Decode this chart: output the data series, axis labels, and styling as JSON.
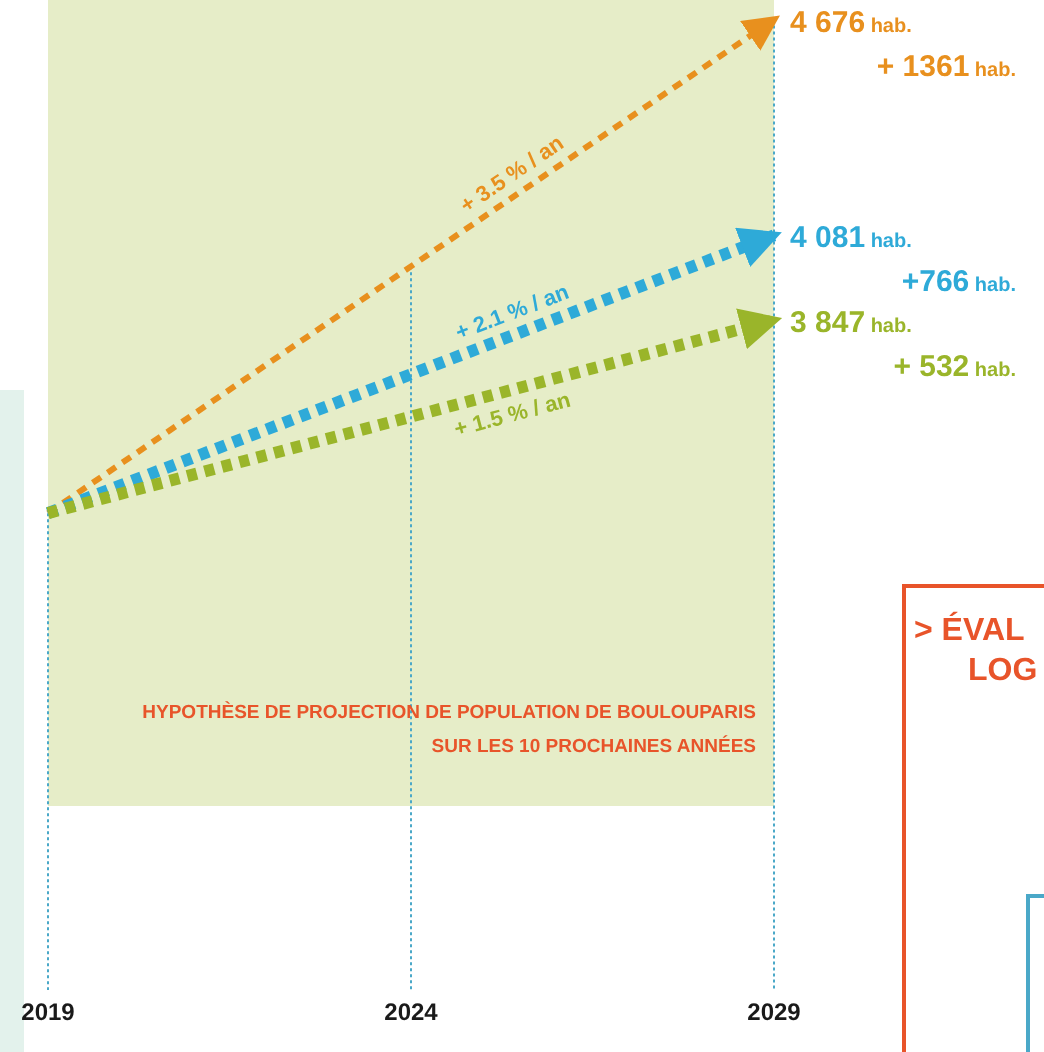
{
  "chart_data": {
    "type": "line",
    "title": "HYPOTHÈSE DE PROJECTION DE POPULATION DE BOULOUPARIS",
    "subtitle": "SUR LES 10 PROCHAINES ANNÉES",
    "x": [
      2019,
      2029
    ],
    "xlim": [
      2019,
      2029
    ],
    "xticks": [
      2019,
      2024,
      2029
    ],
    "ylim": [
      2000,
      4730
    ],
    "tick_labels": "x",
    "marker": "none",
    "line_style": "dotted",
    "series": [
      {
        "color": "#e8901e",
        "values": [
          3315,
          4676
        ],
        "value_labels": [
          null,
          "4 676 hab."
        ]
      },
      {
        "color": "#2eaad8",
        "values": [
          3315,
          4081
        ],
        "value_labels": [
          null,
          "4 081 hab."
        ]
      },
      {
        "color": "#9ab52a",
        "values": [
          3315,
          3847
        ],
        "value_labels": [
          null,
          "3 847 hab."
        ]
      }
    ],
    "bands": [
      {
        "axis": "x",
        "from": 2019,
        "to": 2029,
        "color": "#e6edc8"
      }
    ],
    "ref_lines": [
      {
        "axis": "x",
        "value": 2019,
        "color": "#4aa8c8",
        "line_style": "dotted"
      },
      {
        "axis": "x",
        "value": 2024,
        "color": "#4aa8c8",
        "line_style": "dotted"
      },
      {
        "axis": "x",
        "value": 2029,
        "color": "#4aa8c8",
        "line_style": "dotted"
      }
    ],
    "annotations": [
      "+ 3.5 % / an",
      "+ 2.1 % / an",
      "+ 1.5 % / an",
      "+ 1361 hab.",
      "+766 hab.",
      "+ 532 hab.",
      "> ÉVAL",
      "LOG"
    ]
  }
}
